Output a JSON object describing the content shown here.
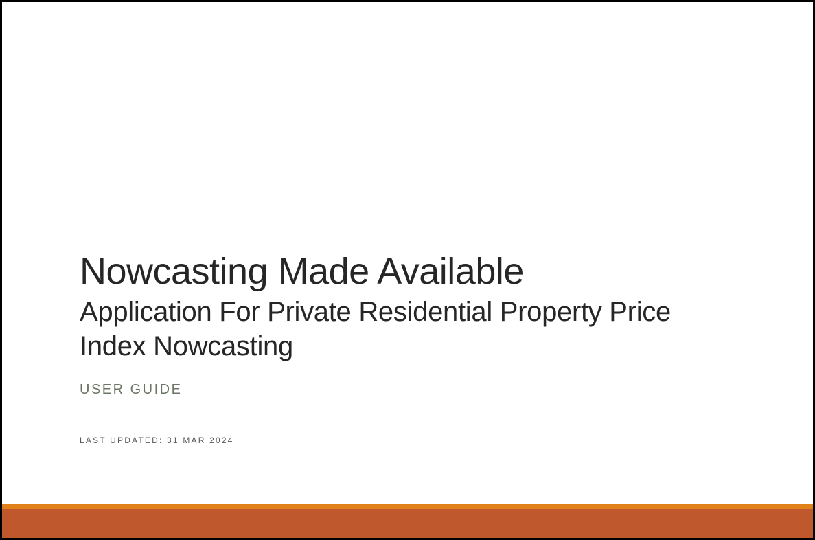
{
  "slide": {
    "title": "Nowcasting Made Available",
    "subtitle": "Application For Private Residential Property Price Index Nowcasting",
    "guide_label": "USER GUIDE",
    "last_updated": "LAST UPDATED: 31 MAR 2024"
  },
  "colors": {
    "footer_band_top": "#e0811b",
    "footer_band_bottom": "#bf582c",
    "title_text": "#262626",
    "guide_label_text": "#6b7565",
    "frame_border": "#000000"
  }
}
